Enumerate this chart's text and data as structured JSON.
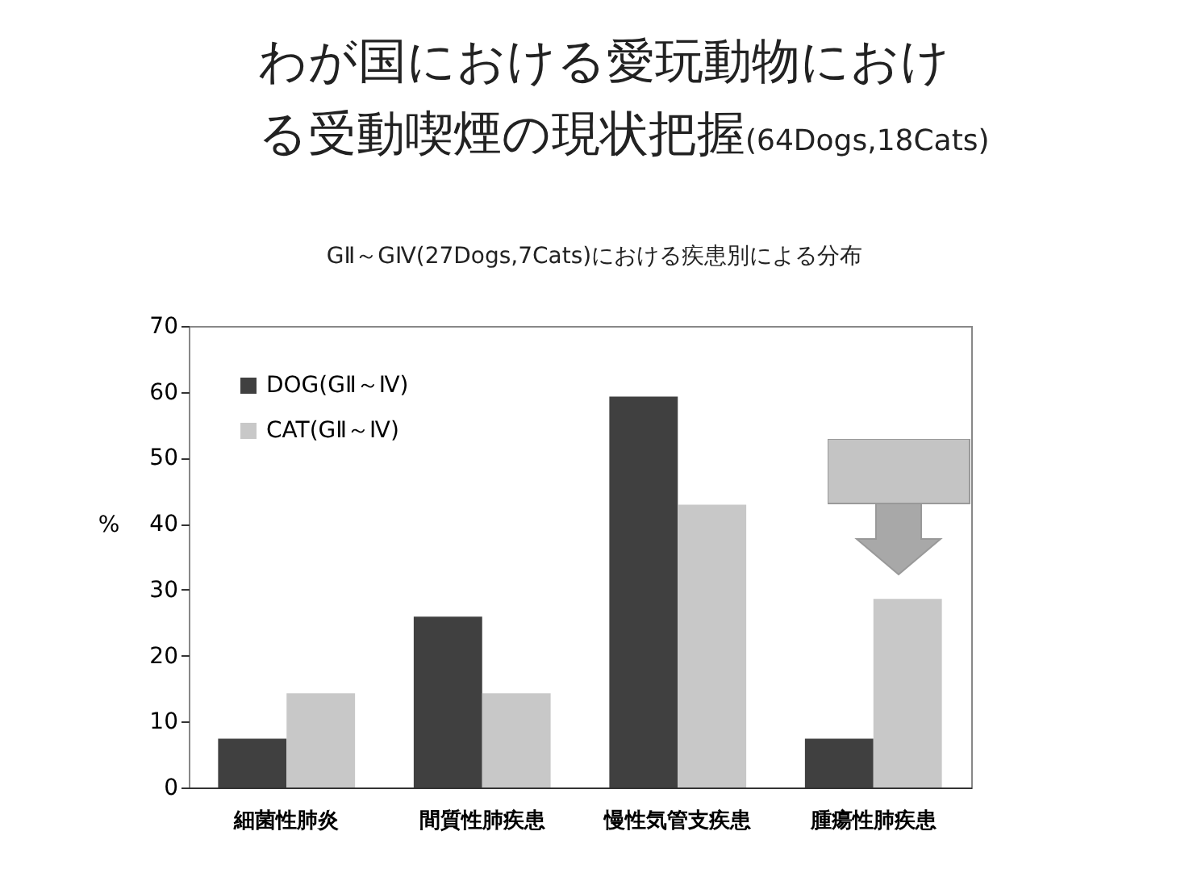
{
  "chart_data": {
    "type": "bar",
    "title": "わが国における愛玩動物における受動喫煙の現状把握(64Dogs,18Cats)",
    "subtitle": "GⅡ～GⅣ(27Dogs,7Cats)における疾患別による分布",
    "ylabel": "%",
    "categories": [
      "細菌性肺炎",
      "間質性肺疾患",
      "慢性気管支疾患",
      "腫瘍性肺疾患"
    ],
    "series": [
      {
        "name": "DOG(GⅡ～Ⅳ)",
        "color": "#404040",
        "values": [
          7.4,
          25.9,
          59.3,
          7.4
        ]
      },
      {
        "name": "CAT(GⅡ～Ⅳ)",
        "color": "#c8c8c8",
        "values": [
          14.3,
          14.3,
          42.9,
          28.6
        ]
      }
    ],
    "ylim": [
      0,
      70
    ],
    "yticks": [
      0,
      10,
      20,
      30,
      40,
      50,
      60,
      70
    ],
    "grid": false,
    "legend": "top left"
  }
}
